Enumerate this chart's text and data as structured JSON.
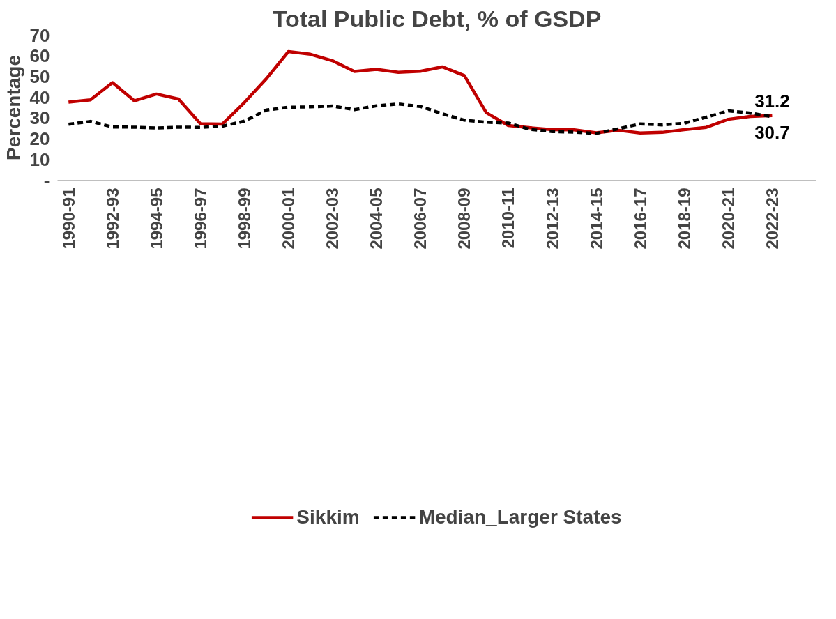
{
  "chart_data": {
    "type": "line",
    "title": "Total Public Debt, % of GSDP",
    "ylabel": "Percentage",
    "categories": [
      "1990-91",
      null,
      "1992-93",
      null,
      "1994-95",
      null,
      "1996-97",
      null,
      "1998-99",
      null,
      "2000-01",
      null,
      "2002-03",
      null,
      "2004-05",
      null,
      "2006-07",
      null,
      "2008-09",
      null,
      "2010-11",
      null,
      "2012-13",
      null,
      "2014-15",
      null,
      "2016-17",
      null,
      "2018-19",
      null,
      "2020-21",
      null,
      "2022-23"
    ],
    "ylim": [
      0,
      70
    ],
    "yticks": [
      {
        "value": 0,
        "label": "-"
      },
      10,
      20,
      30,
      40,
      50,
      60,
      70
    ],
    "grid": false,
    "legend": "bottom",
    "marker": "none",
    "series": [
      {
        "name": "Sikkim",
        "color": "#c00000",
        "line_style": "solid",
        "values": [
          37.7,
          38.8,
          47.1,
          38.3,
          41.6,
          39.2,
          27.3,
          27.1,
          37.5,
          49.0,
          62.1,
          60.8,
          57.7,
          52.5,
          53.5,
          52.1,
          52.6,
          54.7,
          50.5,
          32.6,
          26.4,
          25.3,
          24.4,
          24.3,
          22.9,
          24.1,
          22.8,
          23.1,
          24.4,
          25.5,
          29.4,
          30.8,
          31.2
        ],
        "value_labels": [
          null,
          null,
          null,
          null,
          null,
          null,
          null,
          null,
          null,
          null,
          null,
          null,
          null,
          null,
          null,
          null,
          null,
          null,
          null,
          null,
          null,
          null,
          null,
          null,
          null,
          null,
          null,
          null,
          null,
          null,
          null,
          null,
          "31.2"
        ]
      },
      {
        "name": "Median_Larger States",
        "color": "#000000",
        "line_style": "dashed",
        "values": [
          27.0,
          28.4,
          25.7,
          25.6,
          25.2,
          25.6,
          25.5,
          26.1,
          28.5,
          33.9,
          35.2,
          35.4,
          35.8,
          34.1,
          35.9,
          36.8,
          35.6,
          32.1,
          29.0,
          28.0,
          27.6,
          24.5,
          23.5,
          23.2,
          22.6,
          24.8,
          27.2,
          26.7,
          27.5,
          30.4,
          33.5,
          32.4,
          30.7
        ],
        "value_labels": [
          null,
          null,
          null,
          null,
          null,
          null,
          null,
          null,
          null,
          null,
          null,
          null,
          null,
          null,
          null,
          null,
          null,
          null,
          null,
          null,
          null,
          null,
          null,
          null,
          null,
          null,
          null,
          null,
          null,
          null,
          null,
          null,
          "30.7"
        ]
      }
    ]
  }
}
